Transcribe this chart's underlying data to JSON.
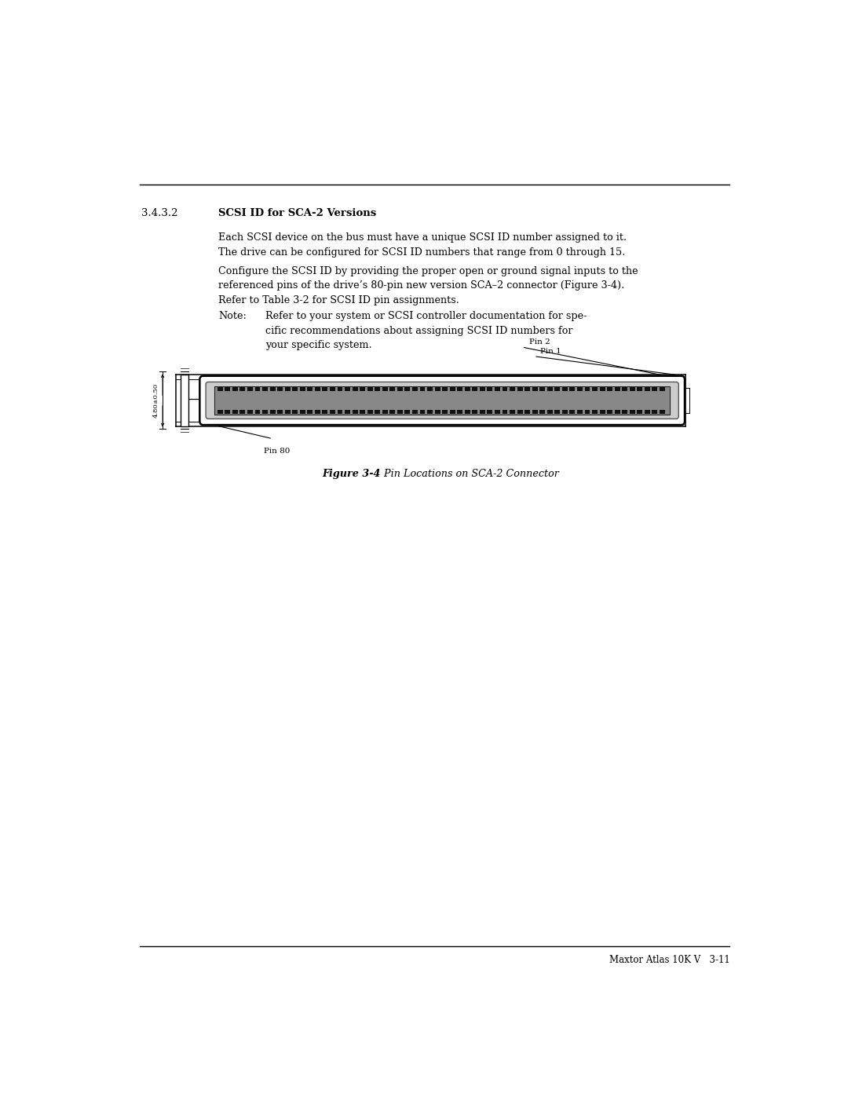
{
  "page_width": 10.8,
  "page_height": 13.97,
  "bg_color": "#ffffff",
  "section_number": "3.4.3.2",
  "section_title": "SCSI ID for SCA-2 Versions",
  "body_text_1": "Each SCSI device on the bus must have a unique SCSI ID number assigned to it.\nThe drive can be configured for SCSI ID numbers that range from 0 through 15.",
  "body_text_2": "Configure the SCSI ID by providing the proper open or ground signal inputs to the\nreferenced pins of the drive’s 80-pin new version SCA–2 connector (Figure 3-4).\nRefer to Table 3-2 for SCSI ID pin assignments.",
  "note_label": "Note:",
  "note_text": "Refer to your system or SCSI controller documentation for spe-\ncific recommendations about assigning SCSI ID numbers for\nyour specific system.",
  "figure_caption_bold": "Figure 3-4",
  "figure_caption_normal": "  Pin Locations on SCA-2 Connector",
  "footer_text": "Maxtor Atlas 10K V   3-11",
  "line_color": "#000000",
  "dim_text": "4.80±0.50",
  "pin2_label": "Pin 2",
  "pin1_label": "Pin 1",
  "pin80_label": "Pin 80"
}
